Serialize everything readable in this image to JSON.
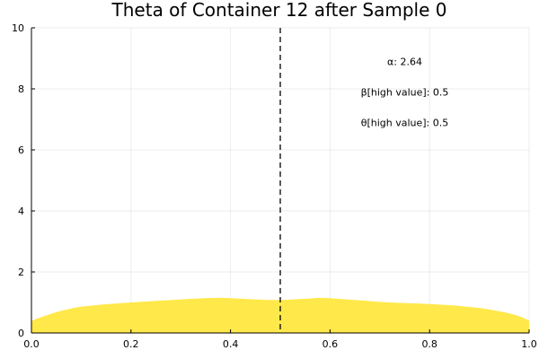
{
  "chart_data": {
    "type": "area",
    "title": "Theta of Container 12 after Sample 0",
    "xlabel": "",
    "ylabel": "",
    "xlim": [
      0.0,
      1.0
    ],
    "ylim": [
      0,
      10
    ],
    "x_ticks": [
      "0.0",
      "0.2",
      "0.4",
      "0.6",
      "0.8",
      "1.0"
    ],
    "y_ticks": [
      "0",
      "2",
      "4",
      "6",
      "8",
      "10"
    ],
    "grid": true,
    "legend": false,
    "series": [
      {
        "fill_color": "#FFE84A",
        "x": [
          0.0,
          0.02,
          0.05,
          0.08,
          0.1,
          0.15,
          0.2,
          0.25,
          0.3,
          0.35,
          0.38,
          0.4,
          0.45,
          0.5,
          0.55,
          0.58,
          0.6,
          0.65,
          0.7,
          0.75,
          0.8,
          0.85,
          0.9,
          0.92,
          0.95,
          0.98,
          1.0
        ],
        "y": [
          0.4,
          0.52,
          0.68,
          0.8,
          0.86,
          0.94,
          1.0,
          1.05,
          1.1,
          1.14,
          1.15,
          1.14,
          1.1,
          1.08,
          1.12,
          1.15,
          1.14,
          1.08,
          1.02,
          0.98,
          0.95,
          0.9,
          0.82,
          0.77,
          0.68,
          0.55,
          0.4
        ]
      }
    ],
    "vline": {
      "x": 0.5,
      "style": "dashed",
      "color": "#000000"
    },
    "annotations": [
      {
        "text": "α: 2.64",
        "x": 0.75,
        "y": 8.9
      },
      {
        "text": "β[high value]: 0.5",
        "x": 0.75,
        "y": 7.9
      },
      {
        "text": "θ[high value]: 0.5",
        "x": 0.75,
        "y": 6.9
      }
    ]
  }
}
